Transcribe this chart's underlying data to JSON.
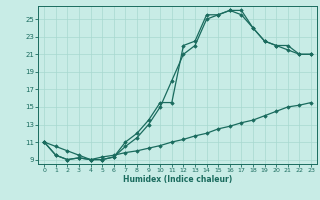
{
  "xlabel": "Humidex (Indice chaleur)",
  "xlim": [
    -0.5,
    23.5
  ],
  "ylim": [
    8.5,
    26.5
  ],
  "xticks": [
    0,
    1,
    2,
    3,
    4,
    5,
    6,
    7,
    8,
    9,
    10,
    11,
    12,
    13,
    14,
    15,
    16,
    17,
    18,
    19,
    20,
    21,
    22,
    23
  ],
  "yticks": [
    9,
    11,
    13,
    15,
    17,
    19,
    21,
    23,
    25
  ],
  "bg_color": "#c8ece6",
  "line_color": "#1a6b5e",
  "grid_color": "#a8d8d0",
  "curve1_x": [
    0,
    1,
    2,
    3,
    4,
    5,
    6,
    7,
    8,
    9,
    10,
    11,
    12,
    13,
    14,
    15,
    16,
    17,
    18,
    19,
    20,
    21,
    22,
    23
  ],
  "curve1_y": [
    11,
    9.5,
    9,
    9.2,
    9,
    9,
    9.3,
    10.5,
    11.5,
    13,
    15,
    18,
    21,
    22,
    25,
    25.5,
    26,
    25.5,
    24,
    22.5,
    22,
    21.5,
    21,
    21
  ],
  "curve2_x": [
    0,
    1,
    2,
    3,
    4,
    5,
    6,
    7,
    8,
    9,
    10,
    11,
    12,
    13,
    14,
    15,
    16,
    17,
    18,
    19,
    20,
    21,
    22,
    23
  ],
  "curve2_y": [
    11,
    9.5,
    9,
    9.2,
    9,
    9,
    9.3,
    11,
    12,
    13.5,
    15.5,
    15.5,
    22,
    22.5,
    25.5,
    25.5,
    26,
    26,
    24,
    22.5,
    22,
    22,
    21,
    21
  ],
  "curve3_x": [
    0,
    1,
    2,
    3,
    4,
    5,
    6,
    7,
    8,
    9,
    10,
    11,
    12,
    13,
    14,
    15,
    16,
    17,
    18,
    19,
    20,
    21,
    22,
    23
  ],
  "curve3_y": [
    11,
    10.5,
    10,
    9.5,
    9,
    9.3,
    9.5,
    9.8,
    10,
    10.3,
    10.6,
    11,
    11.3,
    11.7,
    12,
    12.5,
    12.8,
    13.2,
    13.5,
    14,
    14.5,
    15,
    15.2,
    15.5
  ]
}
